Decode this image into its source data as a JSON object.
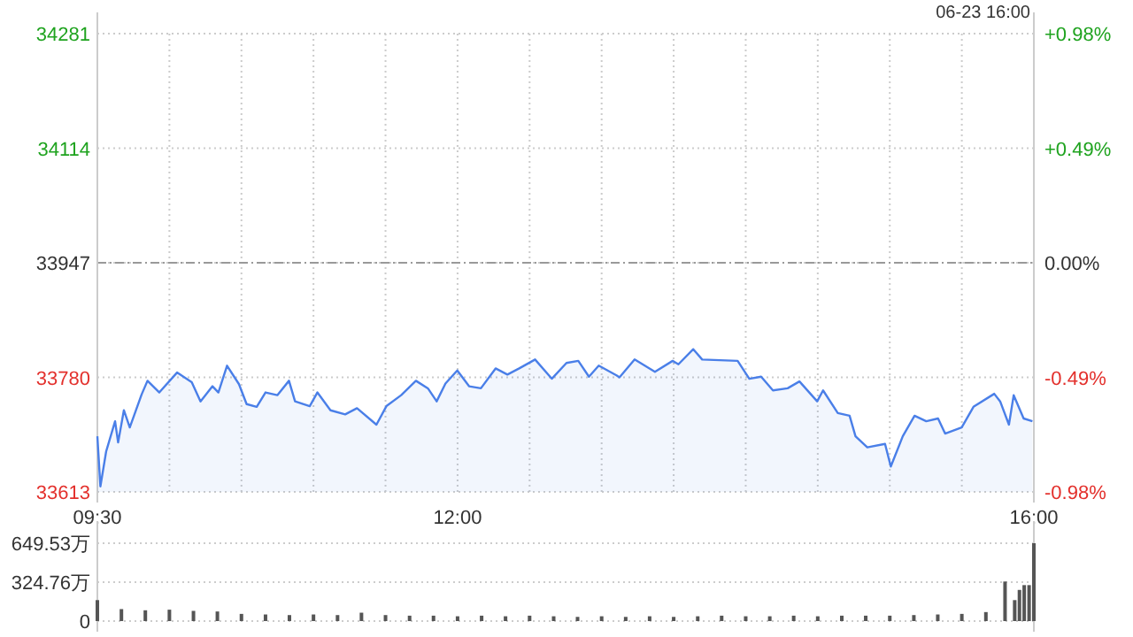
{
  "chart_data": [
    {
      "type": "area",
      "annotations": [
        "06-23 16:00"
      ],
      "xlim": [
        9.5,
        16
      ],
      "xticks": [
        {
          "value": 9.5,
          "label": "09:30"
        },
        {
          "value": 10,
          "label": null
        },
        {
          "value": 10.5,
          "label": null
        },
        {
          "value": 11,
          "label": null
        },
        {
          "value": 11.5,
          "label": null
        },
        {
          "value": 12,
          "label": "12:00"
        },
        {
          "value": 12.5,
          "label": null
        },
        {
          "value": 13,
          "label": null
        },
        {
          "value": 13.5,
          "label": null
        },
        {
          "value": 14,
          "label": null
        },
        {
          "value": 14.5,
          "label": null
        },
        {
          "value": 15,
          "label": null
        },
        {
          "value": 15.5,
          "label": null
        },
        {
          "value": 16,
          "label": "16:00"
        }
      ],
      "ylim": [
        33613,
        34281
      ],
      "yticks": [
        33613,
        33780,
        33947,
        34114,
        34281
      ],
      "y2lim": [
        -0.98,
        0.98
      ],
      "y2ticks": [
        {
          "value": -0.98,
          "label": "-0.98%"
        },
        {
          "value": -0.49,
          "label": "-0.49%"
        },
        {
          "value": 0,
          "label": "0.00%"
        },
        {
          "value": 0.49,
          "label": "+0.49%"
        },
        {
          "value": 0.98,
          "label": "+0.98%"
        }
      ],
      "grid": true,
      "ref_lines": [
        {
          "axis": "y",
          "value": 33947,
          "line_style": "dashed",
          "color": "#999999"
        }
      ],
      "series": [
        {
          "color": "#4a7fe8",
          "x": [
            9.5,
            9.521,
            9.561,
            9.623,
            9.644,
            9.684,
            9.725,
            9.807,
            9.848,
            9.93,
            10.053,
            10.155,
            10.216,
            10.299,
            10.34,
            10.4,
            10.483,
            10.536,
            10.606,
            10.667,
            10.749,
            10.83,
            10.872,
            10.974,
            11.027,
            11.118,
            11.22,
            11.302,
            11.437,
            11.506,
            11.609,
            11.711,
            11.794,
            11.855,
            11.916,
            11.998,
            12.08,
            12.162,
            12.264,
            12.346,
            12.428,
            12.538,
            12.654,
            12.756,
            12.838,
            12.912,
            12.98,
            13.103,
            13.124,
            13.229,
            13.37,
            13.493,
            13.533,
            13.636,
            13.698,
            13.944,
            14.025,
            14.107,
            14.189,
            14.291,
            14.373,
            14.496,
            14.537,
            14.639,
            14.721,
            14.762,
            14.844,
            14.967,
            15.007,
            15.09,
            15.172,
            15.253,
            15.335,
            15.384,
            15.499,
            15.581,
            15.725,
            15.766,
            15.827,
            15.86,
            15.929,
            15.99
          ],
          "values": [
            33694,
            33621,
            33672,
            33716,
            33685,
            33732,
            33707,
            33755,
            33775,
            33758,
            33787,
            33773,
            33745,
            33767,
            33758,
            33797,
            33770,
            33741,
            33737,
            33758,
            33754,
            33775,
            33745,
            33738,
            33758,
            33732,
            33726,
            33735,
            33711,
            33738,
            33754,
            33775,
            33764,
            33745,
            33771,
            33790,
            33767,
            33764,
            33793,
            33784,
            33793,
            33806,
            33778,
            33801,
            33804,
            33781,
            33797,
            33783,
            33780,
            33806,
            33788,
            33804,
            33799,
            33821,
            33806,
            33804,
            33778,
            33781,
            33761,
            33764,
            33774,
            33745,
            33761,
            33728,
            33724,
            33694,
            33678,
            33683,
            33650,
            33694,
            33724,
            33716,
            33720,
            33698,
            33707,
            33737,
            33756,
            33745,
            33711,
            33754,
            33720,
            33716
          ]
        }
      ]
    },
    {
      "type": "bar",
      "xlim": [
        9.5,
        16
      ],
      "ylim": [
        0,
        649.53
      ],
      "yticks": [
        0,
        {
          "value": 324.76,
          "label": "324.76万"
        },
        {
          "value": 649.53,
          "label": "649.53万"
        }
      ],
      "grid": "y",
      "tick_labels": "y",
      "series": [
        {
          "color": "#555555",
          "x": [
            9.5,
            9.667,
            9.833,
            10,
            10.167,
            10.333,
            10.5,
            10.667,
            10.833,
            11,
            11.167,
            11.333,
            11.5,
            11.667,
            11.833,
            12,
            12.167,
            12.333,
            12.5,
            12.667,
            12.833,
            13,
            13.167,
            13.333,
            13.5,
            13.667,
            13.833,
            14,
            14.167,
            14.333,
            14.5,
            14.667,
            14.833,
            15,
            15.167,
            15.333,
            15.5,
            15.667,
            15.8,
            15.867,
            15.9,
            15.933,
            15.967,
            16
          ],
          "values": [
            175,
            100,
            90,
            95,
            85,
            80,
            60,
            55,
            50,
            55,
            50,
            70,
            50,
            45,
            45,
            40,
            45,
            40,
            45,
            40,
            35,
            40,
            35,
            40,
            35,
            40,
            45,
            40,
            40,
            45,
            40,
            45,
            45,
            45,
            50,
            55,
            60,
            75,
            330,
            175,
            260,
            300,
            300,
            649.53
          ]
        }
      ]
    }
  ]
}
